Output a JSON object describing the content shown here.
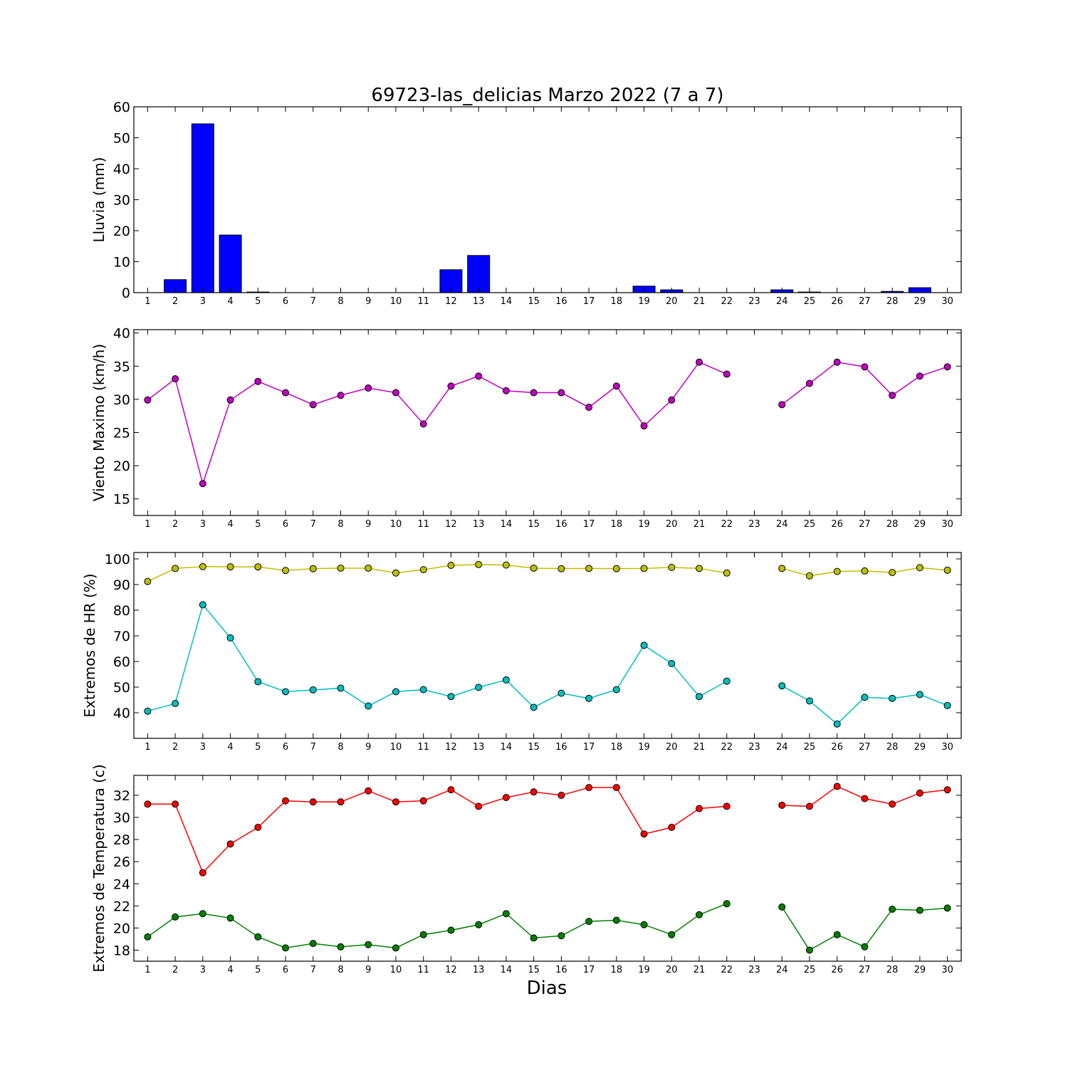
{
  "title": "69723-las_delicias Marzo 2022  (7 a 7)",
  "xlabel": "Dias",
  "colors": {
    "rain": "#0000ff",
    "wind": "#bf00bf",
    "hr_max": "#bfbf00",
    "hr_min": "#00bfbf",
    "t_max": "#ff0000",
    "t_min": "#008000"
  },
  "chart_data": [
    {
      "type": "bar",
      "ylabel": "Lluvia (mm)",
      "xlim": [
        0.5,
        30.5
      ],
      "ylim": [
        0,
        60
      ],
      "yticks": [
        0,
        10,
        20,
        30,
        40,
        50,
        60
      ],
      "categories": [
        1,
        2,
        3,
        4,
        5,
        6,
        7,
        8,
        9,
        10,
        11,
        12,
        13,
        14,
        15,
        16,
        17,
        18,
        19,
        20,
        21,
        22,
        23,
        24,
        25,
        26,
        27,
        28,
        29,
        30
      ],
      "values": [
        0,
        4.2,
        54.5,
        18.6,
        0.2,
        0,
        0,
        0,
        0,
        0,
        0,
        7.4,
        12.0,
        0,
        0,
        0,
        0,
        0,
        2.1,
        0.9,
        0,
        0,
        0,
        0.9,
        0.2,
        0,
        0,
        0.4,
        1.6,
        0
      ]
    },
    {
      "type": "line",
      "ylabel": "Viento Maximo (km/h)",
      "xlim": [
        0.5,
        30.5
      ],
      "ylim": [
        12.5,
        40.5
      ],
      "yticks": [
        15,
        20,
        25,
        30,
        35,
        40
      ],
      "x": [
        1,
        2,
        3,
        4,
        5,
        6,
        7,
        8,
        9,
        10,
        11,
        12,
        13,
        14,
        15,
        16,
        17,
        18,
        19,
        20,
        21,
        22,
        23,
        24,
        25,
        26,
        27,
        28,
        29,
        30
      ],
      "series": [
        {
          "values": [
            29.9,
            33.1,
            17.3,
            29.9,
            32.7,
            31.0,
            29.2,
            30.6,
            31.7,
            31.0,
            26.3,
            32.0,
            33.5,
            31.3,
            31.0,
            31.0,
            28.8,
            32.0,
            26.0,
            29.9,
            35.6,
            33.8,
            null,
            29.2,
            32.4,
            35.6,
            34.9,
            30.6,
            33.5,
            34.9
          ]
        }
      ]
    },
    {
      "type": "line",
      "ylabel": "Extremos de HR (%)",
      "xlim": [
        0.5,
        30.5
      ],
      "ylim": [
        30,
        102.5
      ],
      "yticks": [
        40,
        50,
        60,
        70,
        80,
        90,
        100
      ],
      "x": [
        1,
        2,
        3,
        4,
        5,
        6,
        7,
        8,
        9,
        10,
        11,
        12,
        13,
        14,
        15,
        16,
        17,
        18,
        19,
        20,
        21,
        22,
        23,
        24,
        25,
        26,
        27,
        28,
        29,
        30
      ],
      "series": [
        {
          "values": [
            91.2,
            96.3,
            97.0,
            96.9,
            96.9,
            95.5,
            96.2,
            96.4,
            96.4,
            94.5,
            95.8,
            97.5,
            97.8,
            97.6,
            96.4,
            96.2,
            96.3,
            96.2,
            96.3,
            96.7,
            96.3,
            94.5,
            null,
            96.3,
            93.4,
            95.1,
            95.3,
            94.7,
            96.6,
            95.6
          ]
        },
        {
          "values": [
            40.6,
            43.6,
            82.1,
            69.2,
            52.1,
            48.2,
            48.9,
            49.6,
            42.6,
            48.2,
            49.0,
            46.3,
            49.9,
            52.8,
            42.1,
            47.6,
            45.6,
            49.0,
            66.3,
            59.2,
            46.3,
            52.3,
            null,
            50.5,
            44.6,
            35.6,
            46.0,
            45.6,
            47.1,
            42.8
          ]
        }
      ]
    },
    {
      "type": "line",
      "ylabel": "Extremos de Temperatura (c)",
      "xlim": [
        0.5,
        30.5
      ],
      "ylim": [
        17,
        33.8
      ],
      "yticks": [
        18,
        20,
        22,
        24,
        26,
        28,
        30,
        32
      ],
      "x": [
        1,
        2,
        3,
        4,
        5,
        6,
        7,
        8,
        9,
        10,
        11,
        12,
        13,
        14,
        15,
        16,
        17,
        18,
        19,
        20,
        21,
        22,
        23,
        24,
        25,
        26,
        27,
        28,
        29,
        30
      ],
      "series": [
        {
          "values": [
            31.2,
            31.2,
            25.0,
            27.6,
            29.1,
            31.5,
            31.4,
            31.4,
            32.4,
            31.4,
            31.5,
            32.5,
            31.0,
            31.8,
            32.3,
            32.0,
            32.7,
            32.7,
            28.5,
            29.1,
            30.8,
            31.0,
            null,
            31.1,
            31.0,
            32.8,
            31.7,
            31.2,
            32.2,
            32.5
          ]
        },
        {
          "values": [
            19.2,
            21.0,
            21.3,
            20.9,
            19.2,
            18.2,
            18.6,
            18.3,
            18.5,
            18.2,
            19.4,
            19.8,
            20.3,
            21.3,
            19.1,
            19.3,
            20.6,
            20.7,
            20.3,
            19.4,
            21.2,
            22.2,
            null,
            21.9,
            18.0,
            19.4,
            18.3,
            21.7,
            21.6,
            21.8
          ]
        }
      ]
    }
  ]
}
